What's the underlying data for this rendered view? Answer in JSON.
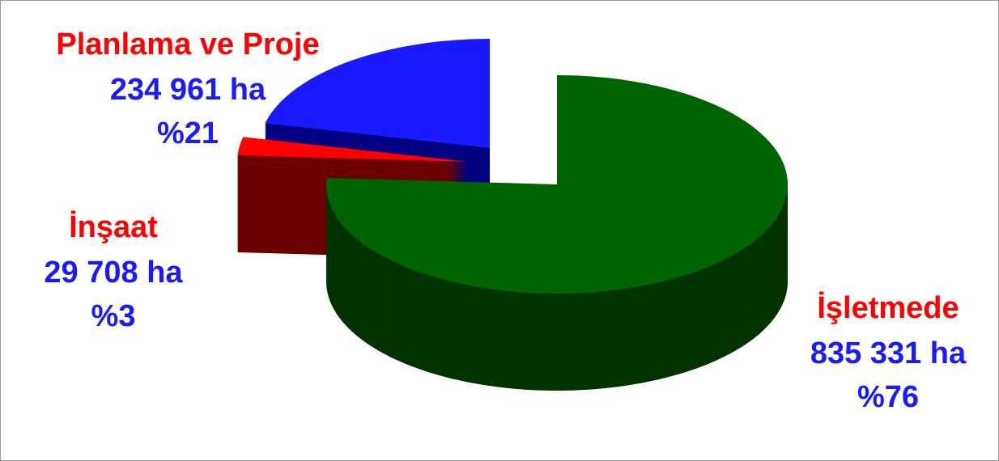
{
  "chart_data": {
    "type": "pie3d",
    "categories": [
      "Planlama ve Proje",
      "İnşaat",
      "İşletmede"
    ],
    "values": [
      234961,
      29708,
      835331
    ],
    "value_labels": [
      "234 961 ha",
      "29 708 ha",
      "835 331 ha"
    ],
    "percents": [
      21,
      3,
      76
    ],
    "percent_labels": [
      "%21",
      "%3",
      "%76"
    ],
    "colors": [
      "#1a1aff",
      "#ff0000",
      "#006400"
    ],
    "side_colors": [
      "#000080",
      "#6b0000",
      "#003300"
    ],
    "category_label_color": "#ff0000",
    "value_label_color": "#1a1aff"
  }
}
